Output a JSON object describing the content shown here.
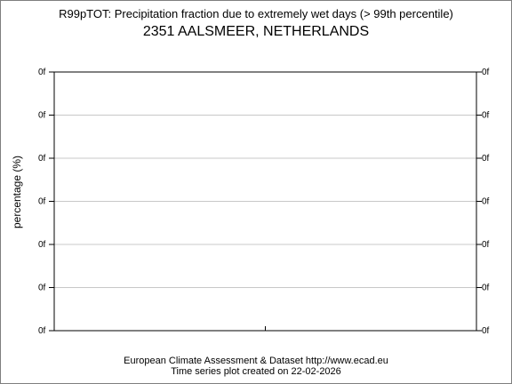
{
  "chart_data": {
    "type": "line",
    "title": "R99pTOT: Precipitation fraction due to extremely wet days (> 99th percentile)",
    "subtitle": "2351 AALSMEER, NETHERLANDS",
    "ylabel": "percentage (%)",
    "xlabel": "",
    "y_tick_labels": [
      "0f",
      "0f",
      "0f",
      "0f",
      "0f",
      "0f",
      "0f"
    ],
    "grid": true,
    "series": [],
    "x": []
  },
  "footer": {
    "line1": "European Climate Assessment & Dataset  http://www.ecad.eu",
    "line2": "Time series plot created on 22-02-2026"
  },
  "colors": {
    "grid": "#c8c8c8",
    "axis": "#000000",
    "frame": "#7f7f7f"
  }
}
